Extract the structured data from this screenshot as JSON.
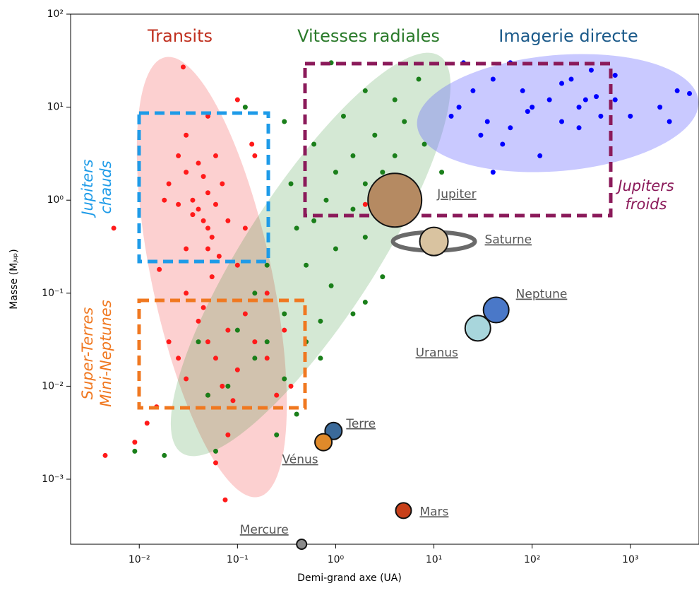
{
  "chart_data": {
    "type": "scatter",
    "xlabel": "Demi-grand axe (UA)",
    "ylabel": "Masse (Mⱼᵤₚ)",
    "log_x": true,
    "log_y": true,
    "xlim": [
      0.002,
      5000
    ],
    "ylim": [
      0.0002,
      100
    ],
    "xticks": [
      {
        "value": 0.01,
        "label": "10⁻²"
      },
      {
        "value": 0.1,
        "label": "10⁻¹"
      },
      {
        "value": 1,
        "label": "10⁰"
      },
      {
        "value": 10,
        "label": "10¹"
      },
      {
        "value": 100,
        "label": "10²"
      },
      {
        "value": 1000,
        "label": "10³"
      }
    ],
    "yticks": [
      {
        "value": 0.001,
        "label": "10⁻³"
      },
      {
        "value": 0.01,
        "label": "10⁻²"
      },
      {
        "value": 0.1,
        "label": "10⁻¹"
      },
      {
        "value": 1,
        "label": "10⁰"
      },
      {
        "value": 10,
        "label": "10¹"
      },
      {
        "value": 100,
        "label": "10²"
      }
    ],
    "annotations": {
      "transits": {
        "text": "Transits",
        "color": "#c0301f"
      },
      "radial": {
        "text": "Vitesses radiales",
        "color": "#2a7a2a"
      },
      "imaging": {
        "text": "Imagerie directe",
        "color": "#1b5a8a"
      },
      "hot": {
        "lines": [
          "Jupiters",
          "chauds"
        ],
        "color": "#1e9be8"
      },
      "super": {
        "lines": [
          "Super-Terres",
          "Mini-Neptunes"
        ],
        "color": "#f07820"
      },
      "cold": {
        "lines": [
          "Jupiters",
          "froids"
        ],
        "color": "#8b1a5a"
      }
    },
    "series": [
      {
        "color": "#ff1a1a",
        "x": [
          0.02,
          0.025,
          0.03,
          0.035,
          0.04,
          0.045,
          0.05,
          0.04,
          0.05,
          0.06,
          0.055,
          0.03,
          0.035,
          0.045,
          0.06,
          0.07,
          0.08,
          0.05,
          0.065,
          0.025,
          0.028,
          0.05,
          0.1,
          0.15,
          0.12,
          0.0055,
          0.016,
          0.03,
          0.04,
          0.05,
          0.06,
          0.08,
          0.1,
          0.12,
          0.15,
          0.2,
          0.07,
          0.05,
          0.03,
          0.025,
          0.02,
          0.015,
          0.012,
          0.08,
          0.06,
          0.075,
          0.0045,
          0.009,
          0.3,
          0.35,
          0.25,
          0.1,
          0.2,
          0.03,
          0.018,
          2,
          0.14,
          0.055,
          0.045,
          0.09
        ],
        "values": [
          1.5,
          3,
          2,
          1,
          0.8,
          0.6,
          0.5,
          2.5,
          1.2,
          0.9,
          0.4,
          5,
          0.7,
          1.8,
          3,
          1.5,
          0.6,
          0.3,
          0.25,
          0.9,
          27,
          8,
          12,
          3,
          0.5,
          0.5,
          0.18,
          0.1,
          0.05,
          0.03,
          0.02,
          0.04,
          0.015,
          0.06,
          0.03,
          0.02,
          0.01,
          0.008,
          0.012,
          0.02,
          0.03,
          0.006,
          0.004,
          0.003,
          0.0015,
          0.0006,
          0.0018,
          0.0025,
          0.04,
          0.01,
          0.008,
          0.2,
          0.1,
          0.3,
          1,
          0.9,
          4,
          0.15,
          0.07,
          0.007
        ]
      },
      {
        "color": "#1a7f1a",
        "x": [
          1,
          1.5,
          2,
          2.5,
          3,
          1.2,
          0.8,
          0.6,
          4,
          5,
          3,
          2,
          1.5,
          6,
          8,
          1,
          0.5,
          0.9,
          0.3,
          0.2,
          0.15,
          0.1,
          0.08,
          0.05,
          0.04,
          0.3,
          0.4,
          0.5,
          0.7,
          0.25,
          0.06,
          0.018,
          0.009,
          2,
          3,
          0.9,
          0.12,
          0.3,
          0.7,
          1.5,
          10,
          12,
          4,
          2,
          7,
          0.4,
          0.35,
          0.2,
          0.15,
          0.6
        ],
        "values": [
          2,
          3,
          1.5,
          5,
          2,
          8,
          1,
          4,
          3,
          7,
          0.6,
          0.4,
          0.8,
          1.2,
          4,
          0.3,
          0.2,
          0.12,
          0.06,
          0.03,
          0.02,
          0.04,
          0.01,
          0.008,
          0.03,
          0.012,
          0.005,
          0.03,
          0.05,
          0.003,
          0.002,
          0.0018,
          0.002,
          0.08,
          0.15,
          30,
          10,
          7,
          0.02,
          0.06,
          0.3,
          2,
          12,
          15,
          20,
          0.5,
          1.5,
          0.2,
          0.1,
          0.6
        ]
      },
      {
        "color": "#0000ff",
        "x": [
          20,
          40,
          80,
          150,
          200,
          300,
          400,
          500,
          700,
          1000,
          2000,
          3000,
          4000,
          2500,
          30,
          50,
          60,
          100,
          120,
          200,
          300,
          350,
          15,
          18,
          25,
          60,
          700,
          450,
          250,
          90,
          40,
          35
        ],
        "values": [
          30,
          20,
          15,
          12,
          18,
          10,
          25,
          8,
          12,
          8,
          10,
          15,
          14,
          7,
          5,
          4,
          6,
          10,
          3,
          7,
          6,
          12,
          8,
          10,
          15,
          30,
          22,
          13,
          20,
          9,
          2,
          7
        ]
      }
    ],
    "solar_system": [
      {
        "label": "Jupiter",
        "x": 4,
        "y": 1,
        "color": "#b58a62"
      },
      {
        "label": "Saturne",
        "x": 10,
        "y": 0.36,
        "color": "#d9c3a0"
      },
      {
        "label": "Neptune",
        "x": 43,
        "y": 0.066,
        "color": "#4a78c8"
      },
      {
        "label": "Uranus",
        "x": 28,
        "y": 0.042,
        "color": "#a8d6dc"
      },
      {
        "label": "Terre",
        "x": 0.95,
        "y": 0.0033,
        "color": "#3b6a9a"
      },
      {
        "label": "Vénus",
        "x": 0.75,
        "y": 0.0025,
        "color": "#e08a2a"
      },
      {
        "label": "Mars",
        "x": 4.9,
        "y": 0.00046,
        "color": "#c8401a"
      },
      {
        "label": "Mercure",
        "x": 0.45,
        "y": 0.0002,
        "color": "#8a8a8a"
      }
    ]
  }
}
